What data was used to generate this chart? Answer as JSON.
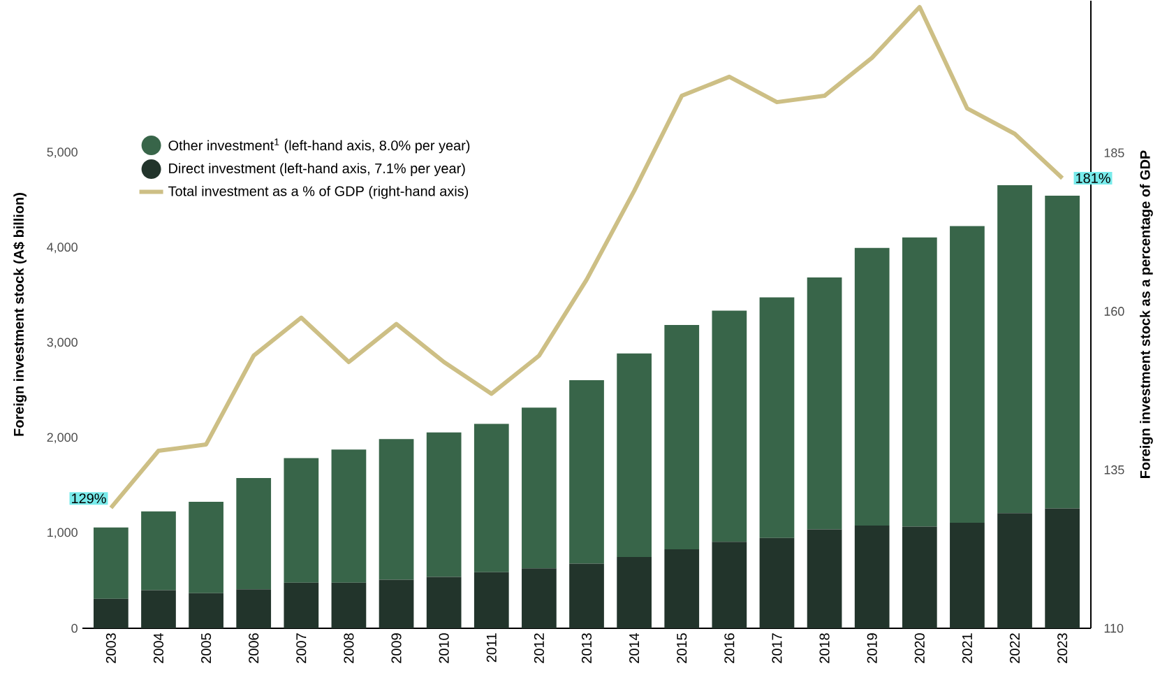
{
  "chart_data": {
    "type": "bar",
    "stacked": true,
    "categories": [
      "2003",
      "2004",
      "2005",
      "2006",
      "2007",
      "2008",
      "2009",
      "2010",
      "2011",
      "2012",
      "2013",
      "2014",
      "2015",
      "2016",
      "2017",
      "2018",
      "2019",
      "2020",
      "2021",
      "2022",
      "2023"
    ],
    "series": [
      {
        "name": "Direct investment (left-hand axis, 7.1% per year)",
        "color": "#22342b",
        "values": [
          310,
          400,
          370,
          410,
          480,
          480,
          510,
          540,
          590,
          630,
          680,
          750,
          830,
          910,
          950,
          1040,
          1080,
          1070,
          1110,
          1210,
          1260
        ]
      },
      {
        "name": "Other investment$^{1}$ (left-hand axis, 8.0% per year)",
        "color": "#386549",
        "values": [
          750,
          830,
          960,
          1170,
          1310,
          1400,
          1480,
          1520,
          1560,
          1690,
          1930,
          2140,
          2360,
          2430,
          2530,
          2650,
          2920,
          3040,
          3120,
          3450,
          3290
        ]
      },
      {
        "name": "Total investment as a % of GDP (right-hand axis)",
        "type": "line",
        "axis": "y2",
        "color": "#cdbf85",
        "values": [
          129,
          138,
          139,
          153,
          159,
          152,
          158,
          152,
          147,
          153,
          165,
          179,
          194,
          197,
          193,
          194,
          200,
          208,
          192,
          188,
          181
        ]
      }
    ],
    "ylabel": "Foreign investment stock (A$ billion)",
    "y2label": "Foreign investment stock as a percentage of GDP",
    "ylim": [
      0,
      6600
    ],
    "yticks": [
      {
        "value": 0,
        "label": "0"
      },
      {
        "value": 1000,
        "label": "1,000"
      },
      {
        "value": 2000,
        "label": "2,000"
      },
      {
        "value": 3000,
        "label": "3,000"
      },
      {
        "value": 4000,
        "label": "4,000"
      },
      {
        "value": 5000,
        "label": "5,000"
      }
    ],
    "y2lim": [
      110,
      209
    ],
    "y2ticks": [
      110,
      135,
      160,
      185
    ],
    "legend": "top left",
    "marker": "none",
    "annotations": [
      "129%",
      "181%"
    ]
  }
}
